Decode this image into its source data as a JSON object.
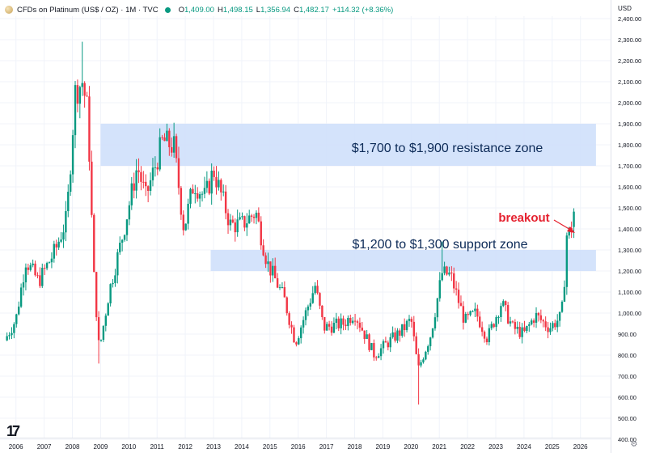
{
  "header": {
    "symbol": "CFDs on Platinum (US$ / OZ) · 1M · TVC",
    "open_label": "O",
    "open": "1,409.00",
    "high_label": "H",
    "high": "1,498.15",
    "low_label": "L",
    "low": "1,356.94",
    "close_label": "C",
    "close": "1,482.17",
    "change": "+114.32 (+8.36%)"
  },
  "currency": "USD",
  "annotations": {
    "resistance": "$1,700 to $1,900 resistance zone",
    "support": "$1,200 to $1,300 support zone",
    "breakout": "breakout"
  },
  "colors": {
    "up": "#089981",
    "down": "#f23645",
    "zone": "#cfe0fb",
    "annotation_text": "#0c2a57",
    "breakout": "#e5212f"
  },
  "chart_data": {
    "type": "candlestick",
    "timeframe": "1M",
    "x_tick_labels": [
      "2006",
      "2007",
      "2008",
      "2009",
      "2010",
      "2011",
      "2012",
      "2013",
      "2014",
      "2015",
      "2016",
      "2017",
      "2018",
      "2019",
      "2020",
      "2021",
      "2022",
      "2023",
      "2024",
      "2025",
      "2026"
    ],
    "y_tick_labels": [
      "2,400.00",
      "2,300.00",
      "2,200.00",
      "2,100.00",
      "2,000.00",
      "1,900.00",
      "1,800.00",
      "1,700.00",
      "1,600.00",
      "1,500.00",
      "1,400.00",
      "1,300.00",
      "1,200.00",
      "1,100.00",
      "1,000.00",
      "900.00",
      "800.00",
      "700.00",
      "600.00",
      "500.00",
      "400.00"
    ],
    "ylim": [
      400,
      2450
    ],
    "xlim": [
      2005.55,
      2026.55
    ],
    "zones": [
      {
        "from_year": 2009.0,
        "to_year": 2026.55,
        "low": 1700,
        "high": 1900
      },
      {
        "from_year": 2012.9,
        "to_year": 2026.55,
        "low": 1200,
        "high": 1300
      }
    ],
    "anchors": [
      {
        "t": 2005.6,
        "c": 870
      },
      {
        "t": 2006.0,
        "c": 970
      },
      {
        "t": 2006.35,
        "c": 1250
      },
      {
        "t": 2006.8,
        "c": 1150
      },
      {
        "t": 2007.4,
        "c": 1300
      },
      {
        "t": 2007.8,
        "c": 1450
      },
      {
        "t": 2008.1,
        "c": 2050
      },
      {
        "t": 2008.35,
        "c": 2100
      },
      {
        "t": 2008.55,
        "c": 1950
      },
      {
        "t": 2008.75,
        "c": 1200
      },
      {
        "t": 2008.95,
        "c": 820
      },
      {
        "t": 2009.3,
        "c": 1100
      },
      {
        "t": 2009.8,
        "c": 1380
      },
      {
        "t": 2010.3,
        "c": 1700
      },
      {
        "t": 2010.6,
        "c": 1550
      },
      {
        "t": 2011.2,
        "c": 1820
      },
      {
        "t": 2011.6,
        "c": 1790
      },
      {
        "t": 2011.95,
        "c": 1400
      },
      {
        "t": 2012.3,
        "c": 1620
      },
      {
        "t": 2012.7,
        "c": 1550
      },
      {
        "t": 2013.0,
        "c": 1680
      },
      {
        "t": 2013.6,
        "c": 1420
      },
      {
        "t": 2014.0,
        "c": 1420
      },
      {
        "t": 2014.5,
        "c": 1480
      },
      {
        "t": 2014.9,
        "c": 1240
      },
      {
        "t": 2015.5,
        "c": 1070
      },
      {
        "t": 2015.9,
        "c": 860
      },
      {
        "t": 2016.6,
        "c": 1130
      },
      {
        "t": 2016.9,
        "c": 930
      },
      {
        "t": 2017.6,
        "c": 950
      },
      {
        "t": 2018.0,
        "c": 1000
      },
      {
        "t": 2018.7,
        "c": 800
      },
      {
        "t": 2019.1,
        "c": 850
      },
      {
        "t": 2019.7,
        "c": 920
      },
      {
        "t": 2020.0,
        "c": 970
      },
      {
        "t": 2020.25,
        "c": 730
      },
      {
        "t": 2020.7,
        "c": 900
      },
      {
        "t": 2021.1,
        "c": 1190
      },
      {
        "t": 2021.4,
        "c": 1180
      },
      {
        "t": 2021.9,
        "c": 960
      },
      {
        "t": 2022.3,
        "c": 1000
      },
      {
        "t": 2022.7,
        "c": 880
      },
      {
        "t": 2023.2,
        "c": 1050
      },
      {
        "t": 2023.6,
        "c": 930
      },
      {
        "t": 2024.0,
        "c": 900
      },
      {
        "t": 2024.4,
        "c": 990
      },
      {
        "t": 2024.9,
        "c": 930
      },
      {
        "t": 2025.3,
        "c": 980
      },
      {
        "t": 2025.4,
        "c": 1060
      },
      {
        "t": 2025.5,
        "c": 1370
      },
      {
        "t": 2025.6,
        "c": 1380
      },
      {
        "t": 2025.7,
        "c": 1409
      },
      {
        "t": 2025.8,
        "c": 1482
      }
    ],
    "last_candle": {
      "open": 1409.0,
      "high": 1498.15,
      "low": 1356.94,
      "close": 1482.17
    }
  }
}
